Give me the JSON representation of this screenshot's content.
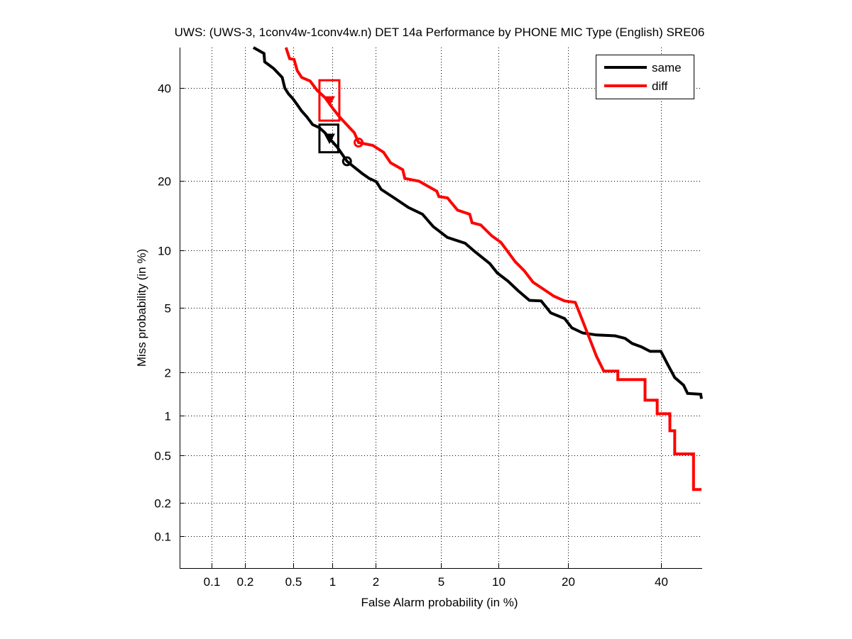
{
  "chart_data": {
    "type": "line",
    "title": "UWS: (UWS-3, 1conv4w-1conv4w.n) DET 14a Performance by PHONE MIC Type (English) SRE06",
    "xlabel": "False Alarm probability (in %)",
    "ylabel": "Miss probability (in %)",
    "xscale": "probit",
    "yscale": "probit",
    "xlim": [
      0.05,
      50
    ],
    "ylim": [
      0.05,
      50
    ],
    "grid": true,
    "legend_position": "top-right",
    "xticks": [
      {
        "value": 0.1,
        "label": "0.1"
      },
      {
        "value": 0.2,
        "label": "0.2"
      },
      {
        "value": 0.5,
        "label": "0.5"
      },
      {
        "value": 1,
        "label": "1"
      },
      {
        "value": 2,
        "label": "2"
      },
      {
        "value": 5,
        "label": "5"
      },
      {
        "value": 10,
        "label": "10"
      },
      {
        "value": 20,
        "label": "20"
      },
      {
        "value": 40,
        "label": "40"
      }
    ],
    "yticks": [
      {
        "value": 0.1,
        "label": "0.1"
      },
      {
        "value": 0.2,
        "label": "0.2"
      },
      {
        "value": 0.5,
        "label": "0.5"
      },
      {
        "value": 1,
        "label": "1"
      },
      {
        "value": 2,
        "label": "2"
      },
      {
        "value": 5,
        "label": "5"
      },
      {
        "value": 10,
        "label": "10"
      },
      {
        "value": 20,
        "label": "20"
      },
      {
        "value": 40,
        "label": "40"
      }
    ],
    "series": [
      {
        "name": "same",
        "color": "#000000",
        "x": [
          0.236,
          0.29,
          0.294,
          0.35,
          0.41,
          0.43,
          0.46,
          0.5,
          0.54,
          0.585,
          0.64,
          0.71,
          0.8,
          0.88,
          0.96,
          1.08,
          1.27,
          1.44,
          1.62,
          1.81,
          2.02,
          2.17,
          2.63,
          3.23,
          3.93,
          4.53,
          5.46,
          6.81,
          7.6,
          9.1,
          9.9,
          11.1,
          12.4,
          13.9,
          15.6,
          17.1,
          19.4,
          20.7,
          22.7,
          25.4,
          29.3,
          31.5,
          33.1,
          35.3,
          37.3,
          39.9,
          41.6,
          43.3,
          45.5,
          46.5,
          49.8,
          50
        ],
        "y": [
          50,
          48.5,
          46.4,
          44.7,
          42.5,
          39.9,
          38.5,
          37.3,
          35.9,
          34.4,
          33.1,
          31.3,
          30.6,
          29.5,
          28.1,
          26.5,
          23.6,
          22.4,
          21.3,
          20.4,
          19.8,
          18.5,
          17.1,
          15.6,
          14.6,
          12.9,
          11.5,
          10.8,
          9.9,
          8.6,
          7.7,
          7.0,
          6.2,
          5.5,
          5.46,
          4.67,
          4.33,
          3.82,
          3.56,
          3.46,
          3.42,
          3.3,
          3.07,
          2.92,
          2.74,
          2.74,
          2.25,
          1.85,
          1.64,
          1.44,
          1.42,
          1.32
        ],
        "operating_points": {
          "min_dcf": {
            "x": 0.95,
            "y": 28.3,
            "marker": "triangle"
          },
          "actual_dcf": {
            "x": 1.27,
            "y": 23.6,
            "marker": "circle"
          },
          "confidence_box": {
            "x": [
              0.8,
              1.1
            ],
            "y": [
              25.4,
              31.3
            ]
          }
        }
      },
      {
        "name": "diff",
        "color": "#ff0000",
        "x": [
          0.44,
          0.47,
          0.51,
          0.54,
          0.585,
          0.68,
          0.77,
          0.88,
          1.0,
          1.12,
          1.29,
          1.43,
          1.53,
          1.91,
          2.25,
          2.5,
          2.98,
          3.07,
          3.75,
          4.13,
          4.75,
          4.89,
          5.46,
          6.2,
          7.2,
          7.4,
          8.2,
          9.3,
          10.3,
          10.9,
          12.0,
          13.2,
          14.4,
          15.9,
          17.6,
          19.4,
          21.3,
          22.0,
          23.3,
          24.4,
          25.4,
          26.9,
          29.9,
          29.9,
          36.1,
          36.1,
          39.0,
          39.0,
          42.1,
          42.1,
          43.3,
          43.3,
          48.0,
          48.0,
          50
        ],
        "y": [
          50,
          47.2,
          47.0,
          44.2,
          42.5,
          41.6,
          39.3,
          37.6,
          35.1,
          33.1,
          31.0,
          29.5,
          27.4,
          26.8,
          25.4,
          23.3,
          22.0,
          20.4,
          19.9,
          19.2,
          18.2,
          17.3,
          17.1,
          15.2,
          14.6,
          13.4,
          13.1,
          11.7,
          10.9,
          10.1,
          8.8,
          7.9,
          6.9,
          6.35,
          5.8,
          5.46,
          5.36,
          4.75,
          3.75,
          3.07,
          2.55,
          2.04,
          2.04,
          1.79,
          1.79,
          1.29,
          1.29,
          1.03,
          1.03,
          0.77,
          0.77,
          0.51,
          0.51,
          0.26,
          0.26
        ],
        "operating_points": {
          "min_dcf": {
            "x": 0.95,
            "y": 36.8,
            "marker": "triangle"
          },
          "actual_dcf": {
            "x": 1.53,
            "y": 27.4,
            "marker": "circle"
          },
          "confidence_box": {
            "x": [
              0.8,
              1.12
            ],
            "y": [
              32.2,
              41.8
            ]
          }
        }
      }
    ]
  }
}
